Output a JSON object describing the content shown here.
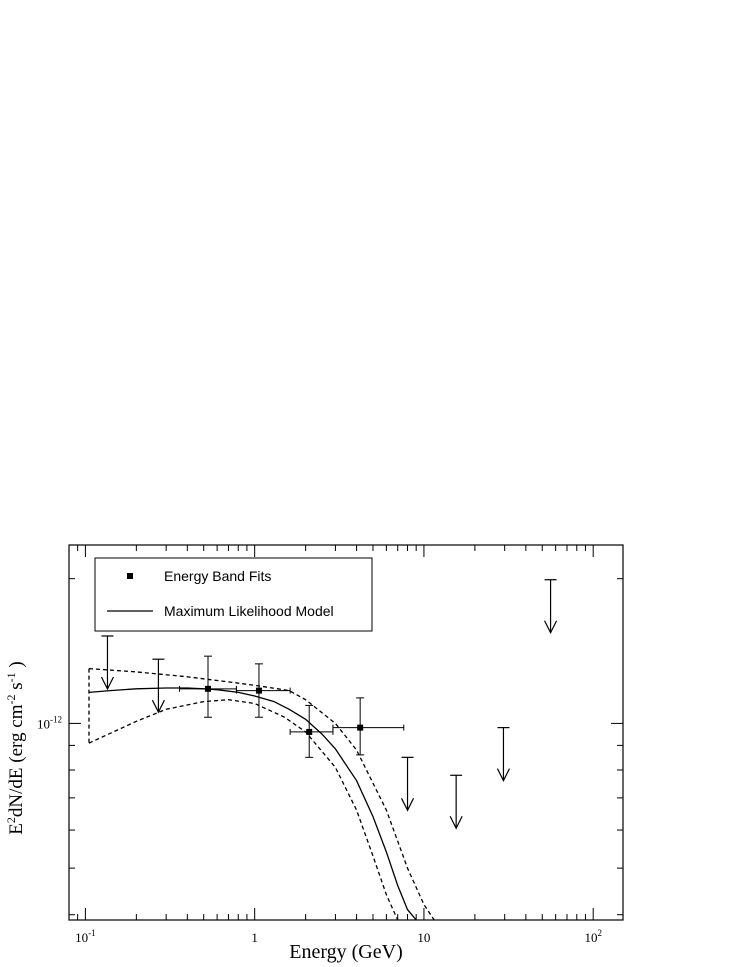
{
  "chart_data": {
    "type": "scatter",
    "xlabel": "Energy (GeV)",
    "ylabel_parts": {
      "main": "E",
      "sup1": "2",
      "mid": "dN/dE (erg cm",
      "sup2": "-2",
      "mid2": " s",
      "sup3": "-1",
      "end": " )"
    },
    "x_scale": "log",
    "y_scale": "log",
    "xlim": [
      0.08,
      150
    ],
    "ylim": [
      3.9e-13,
      2.35e-12
    ],
    "x_ticks": [
      {
        "value": 0.1,
        "base": "10",
        "exp": "-1"
      },
      {
        "value": 1,
        "base": "1",
        "exp": ""
      },
      {
        "value": 10,
        "base": "10",
        "exp": ""
      },
      {
        "value": 100,
        "base": "10",
        "exp": "2"
      }
    ],
    "y_ticks": [
      {
        "value": 1e-12,
        "base": "10",
        "exp": "-12"
      }
    ],
    "legend": {
      "position": "top-left",
      "entries": [
        {
          "label": "Energy Band Fits",
          "marker": "square"
        },
        {
          "label": "Maximum Likelihood Model",
          "marker": "line"
        }
      ]
    },
    "series": [
      {
        "name": "Energy Band Fits",
        "kind": "points",
        "points": [
          {
            "x": 0.53,
            "y": 1.18e-12,
            "xerr": [
              0.36,
              0.78
            ],
            "yerr": [
              1.03e-12,
              1.38e-12
            ]
          },
          {
            "x": 1.06,
            "y": 1.17e-12,
            "xerr": [
              0.78,
              1.62
            ],
            "yerr": [
              1.03e-12,
              1.33e-12
            ]
          },
          {
            "x": 2.1,
            "y": 9.6e-13,
            "xerr": [
              1.62,
              2.9
            ],
            "yerr": [
              8.5e-13,
              1.09e-12
            ]
          },
          {
            "x": 4.2,
            "y": 9.8e-13,
            "xerr": [
              2.9,
              7.6
            ],
            "yerr": [
              8.6e-13,
              1.13e-12
            ]
          }
        ]
      },
      {
        "name": "Upper Limits",
        "kind": "upper_limits",
        "points": [
          {
            "x": 0.135,
            "y": 1.52e-12
          },
          {
            "x": 0.27,
            "y": 1.36e-12
          },
          {
            "x": 8.0,
            "y": 8.5e-13
          },
          {
            "x": 15.5,
            "y": 7.8e-13
          },
          {
            "x": 29.5,
            "y": 9.8e-13
          },
          {
            "x": 56,
            "y": 1.99e-12
          }
        ]
      },
      {
        "name": "Maximum Likelihood Model",
        "kind": "curve",
        "style": "solid",
        "x": [
          0.105,
          0.14,
          0.2,
          0.3,
          0.4,
          0.5,
          0.6,
          0.8,
          1.0,
          1.3,
          1.6,
          2.0,
          2.5,
          3.0,
          4.0,
          5.0,
          6.0,
          7.0,
          8.0,
          9.0
        ],
        "y": [
          1.16e-12,
          1.17e-12,
          1.18e-12,
          1.185e-12,
          1.185e-12,
          1.18e-12,
          1.175e-12,
          1.16e-12,
          1.14e-12,
          1.11e-12,
          1.07e-12,
          1.02e-12,
          9.5e-13,
          8.85e-13,
          7.6e-13,
          6.4e-13,
          5.4e-13,
          4.6e-13,
          4.1e-13,
          3.9e-13
        ]
      },
      {
        "name": "Upper Band",
        "kind": "curve",
        "style": "dashed",
        "x": [
          0.105,
          0.2,
          0.4,
          0.7,
          1.0,
          1.6,
          2.0,
          3.0,
          4.0,
          6.0,
          8.0,
          10.0,
          11.5
        ],
        "y": [
          1.3e-12,
          1.28e-12,
          1.25e-12,
          1.22e-12,
          1.2e-12,
          1.17e-12,
          1.12e-12,
          1e-12,
          8.8e-13,
          6.6e-13,
          5e-13,
          4.2e-13,
          3.9e-13
        ]
      },
      {
        "name": "Lower Band",
        "kind": "curve",
        "style": "dashed",
        "x": [
          0.105,
          0.2,
          0.3,
          0.5,
          0.7,
          1.0,
          1.5,
          2.0,
          3.0,
          4.0,
          5.0,
          6.0,
          7.0
        ],
        "y": [
          9.1e-13,
          1.01e-12,
          1.07e-12,
          1.11e-12,
          1.12e-12,
          1.1e-12,
          1.03e-12,
          9.6e-13,
          8.1e-13,
          6.6e-13,
          5.3e-13,
          4.4e-13,
          3.9e-13
        ]
      }
    ]
  }
}
